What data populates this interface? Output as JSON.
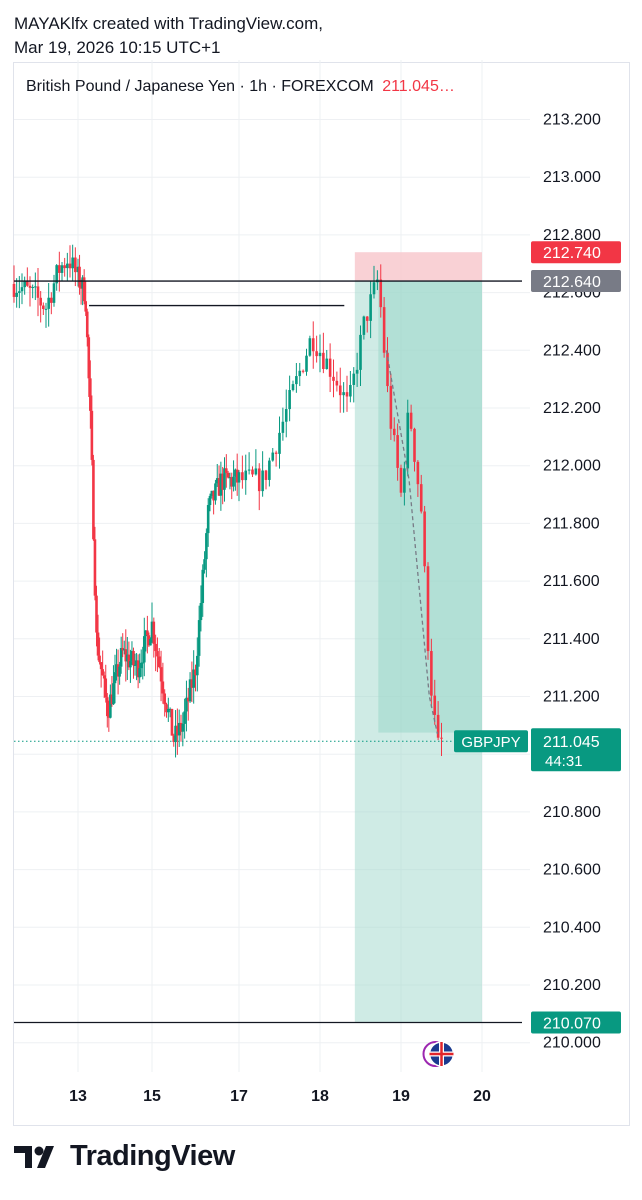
{
  "header": {
    "line1": "MAYAKlfx created with TradingView.com,",
    "line2": "Mar 19, 2026 10:15 UTC+1"
  },
  "legend": {
    "title": "British Pound / Japanese Yen · 1h · FOREXCOM",
    "last_price": "211.045",
    "ellipsis": "…"
  },
  "footer": {
    "brand": "TradingView",
    "logo_icon": "tradingview-logo-icon"
  },
  "colors": {
    "up": "#089981",
    "down": "#f23645",
    "stop_zone": "#f7c5cb",
    "target_zone": "#9fd8cc",
    "grid": "#eef0f3",
    "text": "#131722"
  },
  "chart_data": {
    "type": "candlestick",
    "symbol": "GBPJPY",
    "timeframe": "1h",
    "ylim": [
      209.93,
      213.25
    ],
    "y_ticks": [
      "213.200",
      "213.000",
      "212.800",
      "212.600",
      "212.400",
      "212.200",
      "212.000",
      "211.800",
      "211.600",
      "211.400",
      "211.200",
      "211.000",
      "210.800",
      "210.600",
      "210.400",
      "210.200",
      "210.000"
    ],
    "x_ticks": [
      {
        "label": "13",
        "day": 13
      },
      {
        "label": "15",
        "day": 15
      },
      {
        "label": "17",
        "day": 17
      },
      {
        "label": "18",
        "day": 18
      },
      {
        "label": "19",
        "day": 19
      },
      {
        "label": "20",
        "day": 20
      }
    ],
    "xlim_days": [
      12.0,
      20.5
    ],
    "price_labels": [
      {
        "value": 212.74,
        "text": "212.740",
        "color": "#f23645"
      },
      {
        "value": 212.64,
        "text": "212.640",
        "color": "#787b86"
      },
      {
        "value": 210.07,
        "text": "210.070",
        "color": "#089981"
      }
    ],
    "current": {
      "symbol_label": "GBPJPY",
      "price": "211.045",
      "countdown": "44:31",
      "value": 211.045
    },
    "horizontal_lines": [
      {
        "y": 212.64,
        "x_from_day": 12.0,
        "x_to_day": 20.5
      },
      {
        "y": 212.555,
        "x_from_day": 13.3,
        "x_to_day": 18.3
      },
      {
        "y": 210.07,
        "x_from_day": 12.0,
        "x_to_day": 20.5
      }
    ],
    "position": {
      "entry": 212.64,
      "stop": 212.74,
      "target": 210.07,
      "x_from_day": 18.43,
      "x_to_day": 20.0,
      "fill_from_day": 18.72,
      "fill_to": 211.075
    },
    "projection": [
      {
        "day": 18.82,
        "price": 212.4
      },
      {
        "day": 19.1,
        "price": 211.95
      },
      {
        "day": 19.35,
        "price": 211.2
      },
      {
        "day": 19.45,
        "price": 211.07
      }
    ],
    "anchors": [
      {
        "day": 12.0,
        "price": 212.63
      },
      {
        "day": 12.25,
        "price": 212.6
      },
      {
        "day": 12.5,
        "price": 212.55
      },
      {
        "day": 12.7,
        "price": 212.68
      },
      {
        "day": 12.85,
        "price": 212.72
      },
      {
        "day": 13.0,
        "price": 212.65
      },
      {
        "day": 13.2,
        "price": 212.6
      },
      {
        "day": 13.35,
        "price": 212.1
      },
      {
        "day": 13.5,
        "price": 211.4
      },
      {
        "day": 13.8,
        "price": 211.15
      },
      {
        "day": 14.2,
        "price": 211.35
      },
      {
        "day": 14.6,
        "price": 211.3
      },
      {
        "day": 15.0,
        "price": 211.45
      },
      {
        "day": 15.3,
        "price": 211.2
      },
      {
        "day": 15.5,
        "price": 211.05
      },
      {
        "day": 15.7,
        "price": 211.1
      },
      {
        "day": 16.0,
        "price": 211.3
      },
      {
        "day": 16.3,
        "price": 211.85
      },
      {
        "day": 16.6,
        "price": 211.95
      },
      {
        "day": 17.0,
        "price": 211.95
      },
      {
        "day": 17.3,
        "price": 211.95
      },
      {
        "day": 17.6,
        "price": 212.2
      },
      {
        "day": 17.9,
        "price": 212.45
      },
      {
        "day": 18.2,
        "price": 212.3
      },
      {
        "day": 18.35,
        "price": 212.2
      },
      {
        "day": 18.55,
        "price": 212.5
      },
      {
        "day": 18.72,
        "price": 212.65
      },
      {
        "day": 18.85,
        "price": 212.2
      },
      {
        "day": 19.0,
        "price": 211.9
      },
      {
        "day": 19.1,
        "price": 212.2
      },
      {
        "day": 19.25,
        "price": 211.85
      },
      {
        "day": 19.35,
        "price": 211.3
      },
      {
        "day": 19.45,
        "price": 211.02
      },
      {
        "day": 19.5,
        "price": 211.045
      }
    ]
  }
}
